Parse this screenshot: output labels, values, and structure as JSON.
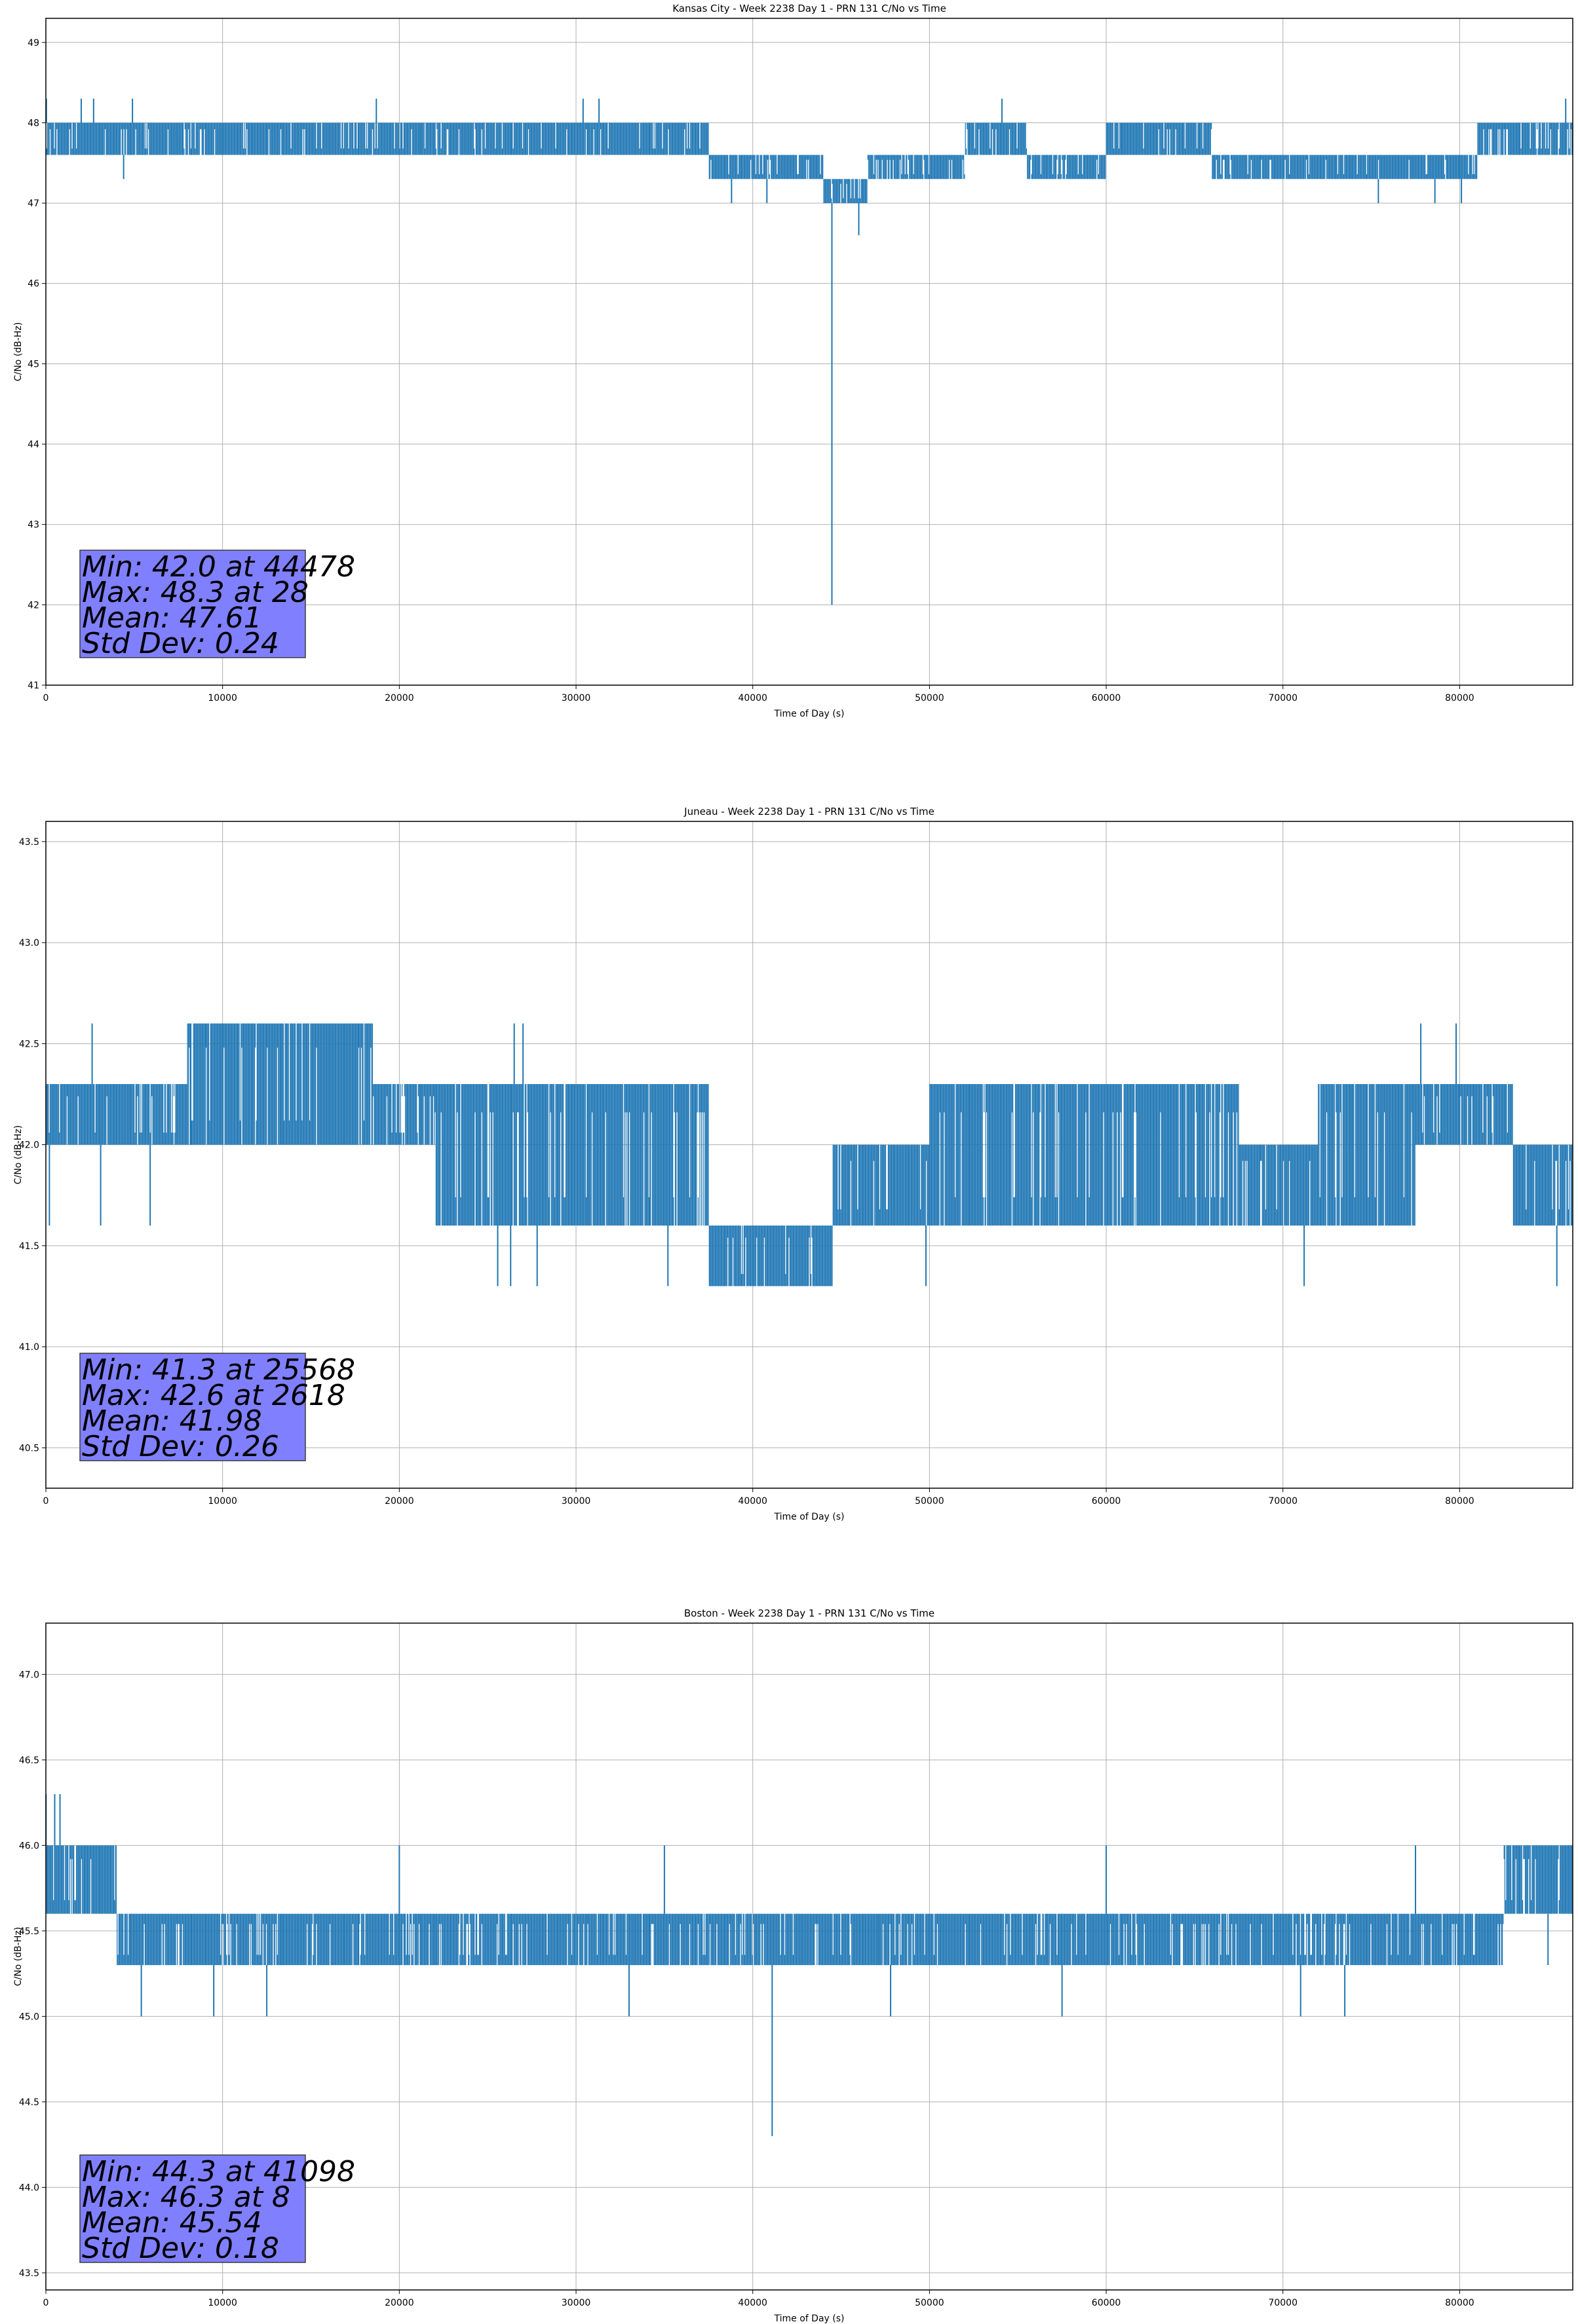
{
  "colors": {
    "line": "#1f77b4",
    "grid": "#b0b0b0",
    "stats_box": "#8080ff",
    "stats_border": "#3a3a3a"
  },
  "chart_data": [
    {
      "type": "line",
      "title": "Kansas City - Week 2238 Day 1 - PRN 131 C/No vs Time",
      "xlabel": "Time of Day (s)",
      "ylabel": "C/No (dB-Hz)",
      "xlim": [
        0,
        86400
      ],
      "ylim": [
        41,
        49.3
      ],
      "x_ticks": [
        0,
        10000,
        20000,
        30000,
        40000,
        50000,
        60000,
        70000,
        80000
      ],
      "x_tick_labels": [
        "0",
        "10000",
        "20000",
        "30000",
        "40000",
        "50000",
        "60000",
        "70000",
        "80000"
      ],
      "y_ticks": [
        41,
        42,
        43,
        44,
        45,
        46,
        47,
        48,
        49
      ],
      "y_tick_labels": [
        "41",
        "42",
        "43",
        "44",
        "45",
        "46",
        "47",
        "48",
        "49"
      ],
      "grid": true,
      "stats": {
        "min": "Min: 42.0 at 44478",
        "max": "Max: 48.3 at 28",
        "mean": "Mean: 47.61",
        "std": "Std Dev: 0.24"
      },
      "bands": [
        {
          "x0": 0,
          "x1": 37500,
          "lo": 47.6,
          "hi": 48.0
        },
        {
          "x0": 37500,
          "x1": 44000,
          "lo": 47.3,
          "hi": 47.6
        },
        {
          "x0": 44000,
          "x1": 46500,
          "lo": 47.0,
          "hi": 47.3
        },
        {
          "x0": 46500,
          "x1": 52000,
          "lo": 47.3,
          "hi": 47.6
        },
        {
          "x0": 52000,
          "x1": 55500,
          "lo": 47.6,
          "hi": 48.0
        },
        {
          "x0": 55500,
          "x1": 60000,
          "lo": 47.3,
          "hi": 47.6
        },
        {
          "x0": 60000,
          "x1": 66000,
          "lo": 47.6,
          "hi": 48.0
        },
        {
          "x0": 66000,
          "x1": 81000,
          "lo": 47.3,
          "hi": 47.6
        },
        {
          "x0": 81000,
          "x1": 86400,
          "lo": 47.6,
          "hi": 48.0
        }
      ],
      "spikes": [
        {
          "x": 44478,
          "y": 42.0
        },
        {
          "x": 28,
          "y": 48.3
        },
        {
          "x": 2000,
          "y": 48.3
        },
        {
          "x": 2700,
          "y": 48.3
        },
        {
          "x": 4900,
          "y": 48.3
        },
        {
          "x": 18700,
          "y": 48.3
        },
        {
          "x": 30400,
          "y": 48.3
        },
        {
          "x": 31300,
          "y": 48.3
        },
        {
          "x": 54100,
          "y": 48.3
        },
        {
          "x": 86000,
          "y": 48.3
        },
        {
          "x": 4400,
          "y": 47.3
        },
        {
          "x": 38800,
          "y": 47.0
        },
        {
          "x": 40800,
          "y": 47.0
        },
        {
          "x": 46000,
          "y": 46.6
        },
        {
          "x": 75400,
          "y": 47.0
        },
        {
          "x": 78600,
          "y": 47.0
        },
        {
          "x": 80100,
          "y": 47.0
        }
      ]
    },
    {
      "type": "line",
      "title": "Juneau - Week 2238 Day 1 - PRN 131 C/No vs Time",
      "xlabel": "Time of Day (s)",
      "ylabel": "C/No (dB-Hz)",
      "xlim": [
        0,
        86400
      ],
      "ylim": [
        40.3,
        43.6
      ],
      "x_ticks": [
        0,
        10000,
        20000,
        30000,
        40000,
        50000,
        60000,
        70000,
        80000
      ],
      "x_tick_labels": [
        "0",
        "10000",
        "20000",
        "30000",
        "40000",
        "50000",
        "60000",
        "70000",
        "80000"
      ],
      "y_ticks": [
        40.5,
        41.0,
        41.5,
        42.0,
        42.5,
        43.0,
        43.5
      ],
      "y_tick_labels": [
        "40.5",
        "41.0",
        "41.5",
        "42.0",
        "42.5",
        "43.0",
        "43.5"
      ],
      "grid": true,
      "stats": {
        "min": "Min: 41.3 at 25568",
        "max": "Max: 42.6 at 2618",
        "mean": "Mean: 41.98",
        "std": "Std Dev: 0.26"
      },
      "bands": [
        {
          "x0": 0,
          "x1": 8000,
          "lo": 42.0,
          "hi": 42.3
        },
        {
          "x0": 8000,
          "x1": 18500,
          "lo": 42.0,
          "hi": 42.6
        },
        {
          "x0": 18500,
          "x1": 22000,
          "lo": 42.0,
          "hi": 42.3
        },
        {
          "x0": 22000,
          "x1": 37500,
          "lo": 41.6,
          "hi": 42.3
        },
        {
          "x0": 37500,
          "x1": 44500,
          "lo": 41.3,
          "hi": 41.6
        },
        {
          "x0": 44500,
          "x1": 50000,
          "lo": 41.6,
          "hi": 42.0
        },
        {
          "x0": 50000,
          "x1": 67500,
          "lo": 41.6,
          "hi": 42.3
        },
        {
          "x0": 67500,
          "x1": 72000,
          "lo": 41.6,
          "hi": 42.0
        },
        {
          "x0": 72000,
          "x1": 77500,
          "lo": 41.6,
          "hi": 42.3
        },
        {
          "x0": 77500,
          "x1": 83000,
          "lo": 42.0,
          "hi": 42.3
        },
        {
          "x0": 83000,
          "x1": 86400,
          "lo": 41.6,
          "hi": 42.0
        }
      ],
      "spikes": [
        {
          "x": 2618,
          "y": 42.6
        },
        {
          "x": 8200,
          "y": 42.6
        },
        {
          "x": 26500,
          "y": 42.6
        },
        {
          "x": 27000,
          "y": 42.6
        },
        {
          "x": 77800,
          "y": 42.6
        },
        {
          "x": 79800,
          "y": 42.6
        },
        {
          "x": 25568,
          "y": 41.3
        },
        {
          "x": 26300,
          "y": 41.3
        },
        {
          "x": 27800,
          "y": 41.3
        },
        {
          "x": 35200,
          "y": 41.3
        },
        {
          "x": 49800,
          "y": 41.3
        },
        {
          "x": 71200,
          "y": 41.3
        },
        {
          "x": 85500,
          "y": 41.3
        },
        {
          "x": 200,
          "y": 41.6
        },
        {
          "x": 3100,
          "y": 41.6
        },
        {
          "x": 5900,
          "y": 41.6
        }
      ]
    },
    {
      "type": "line",
      "title": "Boston - Week 2238 Day 1 - PRN 131 C/No vs Time",
      "xlabel": "Time of Day (s)",
      "ylabel": "C/No (dB-Hz)",
      "xlim": [
        0,
        86400
      ],
      "ylim": [
        43.4,
        47.3
      ],
      "x_ticks": [
        0,
        10000,
        20000,
        30000,
        40000,
        50000,
        60000,
        70000,
        80000
      ],
      "x_tick_labels": [
        "0",
        "10000",
        "20000",
        "30000",
        "40000",
        "50000",
        "60000",
        "70000",
        "80000"
      ],
      "y_ticks": [
        43.5,
        44.0,
        44.5,
        45.0,
        45.5,
        46.0,
        46.5,
        47.0
      ],
      "y_tick_labels": [
        "43.5",
        "44.0",
        "44.5",
        "45.0",
        "45.5",
        "46.0",
        "46.5",
        "47.0"
      ],
      "grid": true,
      "stats": {
        "min": "Min: 44.3 at 41098",
        "max": "Max: 46.3 at 8",
        "mean": "Mean: 45.54",
        "std": "Std Dev: 0.18"
      },
      "bands": [
        {
          "x0": 0,
          "x1": 4000,
          "lo": 45.6,
          "hi": 46.0
        },
        {
          "x0": 4000,
          "x1": 82500,
          "lo": 45.3,
          "hi": 45.6
        },
        {
          "x0": 82500,
          "x1": 86400,
          "lo": 45.6,
          "hi": 46.0
        }
      ],
      "spikes": [
        {
          "x": 8,
          "y": 46.3
        },
        {
          "x": 500,
          "y": 46.3
        },
        {
          "x": 800,
          "y": 46.3
        },
        {
          "x": 41098,
          "y": 44.3
        },
        {
          "x": 5400,
          "y": 45.0
        },
        {
          "x": 9500,
          "y": 45.0
        },
        {
          "x": 12500,
          "y": 45.0
        },
        {
          "x": 33000,
          "y": 45.0
        },
        {
          "x": 47800,
          "y": 45.0
        },
        {
          "x": 57500,
          "y": 45.0
        },
        {
          "x": 71000,
          "y": 45.0
        },
        {
          "x": 73500,
          "y": 45.0
        },
        {
          "x": 85000,
          "y": 45.3
        },
        {
          "x": 20000,
          "y": 46.0
        },
        {
          "x": 35000,
          "y": 46.0
        },
        {
          "x": 60000,
          "y": 46.0
        },
        {
          "x": 77500,
          "y": 46.0
        }
      ]
    }
  ]
}
